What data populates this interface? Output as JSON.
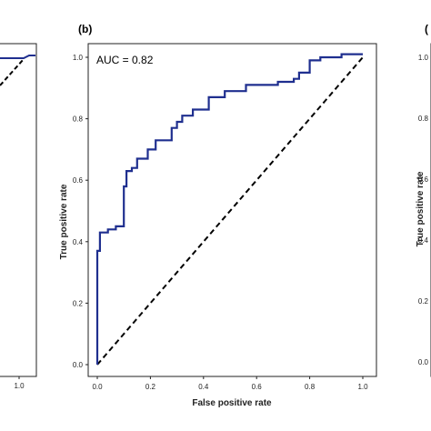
{
  "panels": {
    "left_partial": {
      "x_tick": "1.0"
    },
    "right_partial": {
      "label": "(",
      "ylabel": "True positive rate",
      "y_ticks": [
        "1.0",
        "0.8",
        "0.6",
        "0.4",
        "0.2",
        "0.0"
      ]
    }
  },
  "chart_data": {
    "type": "line",
    "panel_label": "(b)",
    "annotation": "AUC = 0.82",
    "xlabel": "False positive rate",
    "ylabel": "True positive rate",
    "xlim": [
      0,
      1
    ],
    "ylim": [
      0,
      1
    ],
    "x_ticks": [
      "0.0",
      "0.2",
      "0.4",
      "0.6",
      "0.8",
      "1.0"
    ],
    "y_ticks": [
      "0.0",
      "0.2",
      "0.4",
      "0.6",
      "0.8",
      "1.0"
    ],
    "grid": false,
    "colors": {
      "roc": "#1f2f8f",
      "diagonal": "#000000"
    },
    "series": [
      {
        "style": "solid",
        "x": [
          0.0,
          0.0,
          0.01,
          0.01,
          0.04,
          0.04,
          0.07,
          0.07,
          0.1,
          0.1,
          0.11,
          0.11,
          0.13,
          0.13,
          0.15,
          0.15,
          0.19,
          0.19,
          0.22,
          0.22,
          0.28,
          0.28,
          0.3,
          0.3,
          0.32,
          0.32,
          0.36,
          0.36,
          0.42,
          0.42,
          0.48,
          0.48,
          0.56,
          0.56,
          0.68,
          0.68,
          0.74,
          0.74,
          0.76,
          0.76,
          0.8,
          0.8,
          0.84,
          0.84,
          0.92,
          0.92,
          1.0
        ],
        "y": [
          0.0,
          0.37,
          0.37,
          0.43,
          0.43,
          0.44,
          0.44,
          0.45,
          0.45,
          0.58,
          0.58,
          0.63,
          0.63,
          0.64,
          0.64,
          0.67,
          0.67,
          0.7,
          0.7,
          0.73,
          0.73,
          0.77,
          0.77,
          0.79,
          0.79,
          0.81,
          0.81,
          0.83,
          0.83,
          0.87,
          0.87,
          0.89,
          0.89,
          0.91,
          0.91,
          0.92,
          0.92,
          0.93,
          0.93,
          0.95,
          0.95,
          0.99,
          0.99,
          1.0,
          1.0,
          1.01,
          1.01
        ]
      },
      {
        "style": "dashed",
        "x": [
          0.0,
          1.0
        ],
        "y": [
          0.0,
          1.0
        ]
      }
    ]
  }
}
